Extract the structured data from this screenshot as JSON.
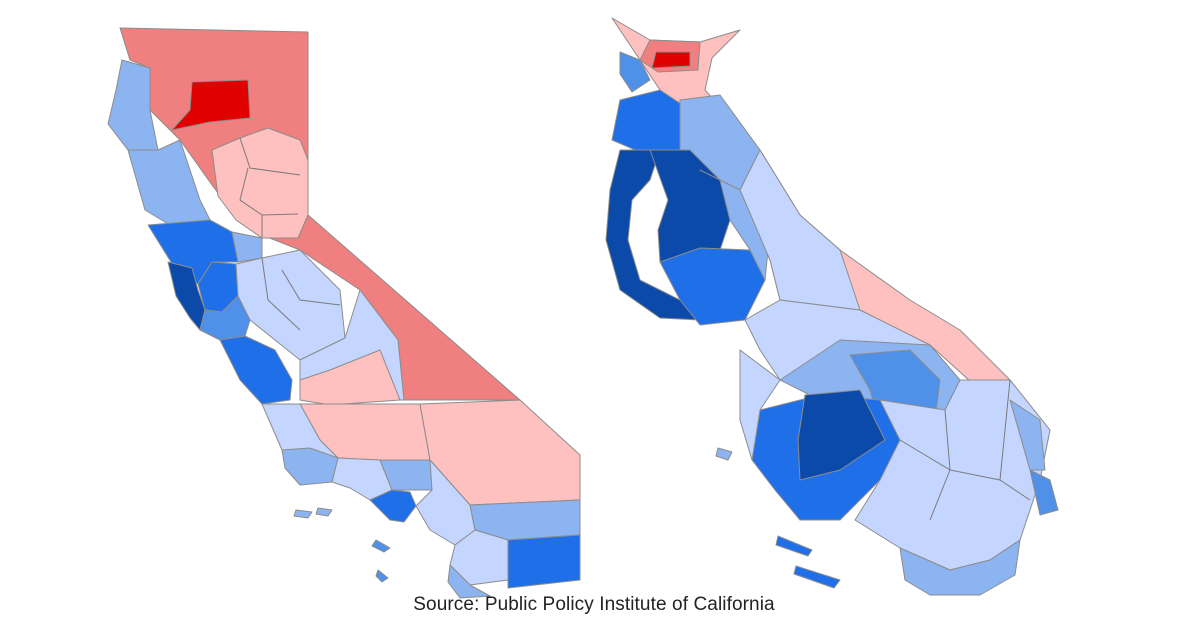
{
  "caption": "Source: Public Policy Institute of California",
  "legend_colors": {
    "strong_red": "#e00000",
    "red": "#f08080",
    "light_red": "#ffc0c0",
    "pale_blue": "#c4d6ff",
    "light_blue": "#8cb4f0",
    "medium_blue": "#4f90e8",
    "blue": "#1f6fe8",
    "dark_blue": "#0b4aa8",
    "shoreline": "#7a7a7a"
  },
  "maps": [
    {
      "name": "geographic-map"
    },
    {
      "name": "cartogram-map"
    }
  ]
}
